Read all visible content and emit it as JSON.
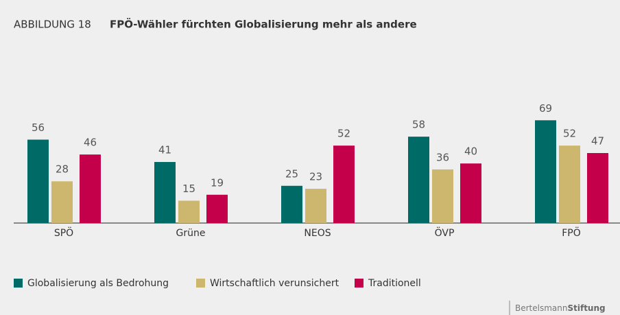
{
  "chart_data": {
    "type": "bar",
    "title_prefix": "ABBILDUNG 18",
    "title": "FPÖ-Wähler fürchten Globalisierung mehr als andere",
    "categories": [
      "SPÖ",
      "Grüne",
      "NEOS",
      "ÖVP",
      "FPÖ"
    ],
    "series": [
      {
        "name": "Globalisierung als Bedrohung",
        "color": "#006a66",
        "values": [
          56,
          41,
          25,
          58,
          69
        ]
      },
      {
        "name": "Wirtschaftlich verunsichert",
        "color": "#cdb76e",
        "values": [
          28,
          15,
          23,
          36,
          52
        ]
      },
      {
        "name": "Traditionell",
        "color": "#c4004a",
        "values": [
          46,
          19,
          52,
          40,
          47
        ]
      }
    ],
    "legend": "bottom-left",
    "footer": {
      "brand": "Bertelsmann",
      "brand_bold": "Stiftung"
    }
  }
}
